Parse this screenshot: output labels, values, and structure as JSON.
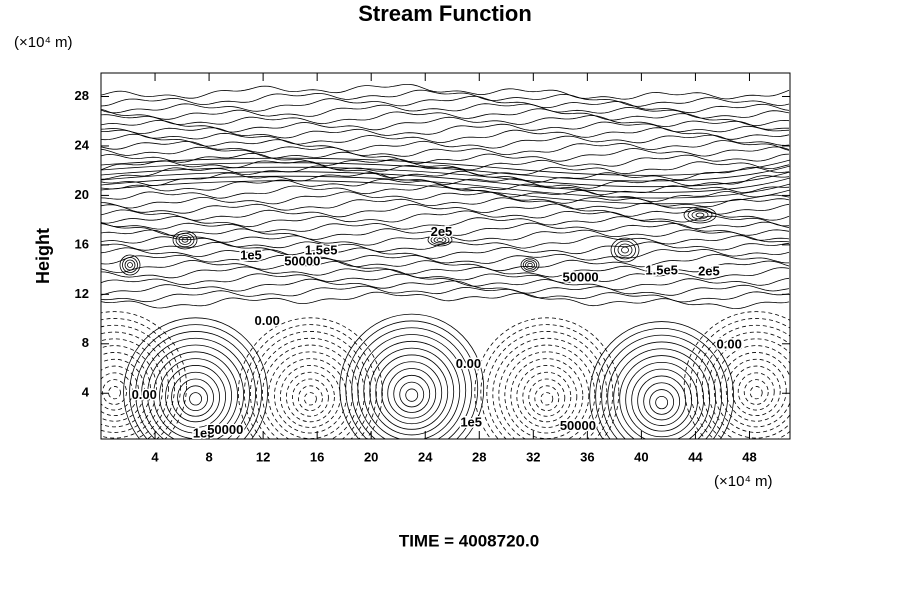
{
  "chart_data": {
    "type": "contour",
    "title": "Stream Function",
    "y_unit": "(×10⁴ m)",
    "x_unit": "(×10⁴ m)",
    "ylabel": "Height",
    "footer": "TIME = 4008720.0",
    "xlim": [
      0,
      51
    ],
    "ylim": [
      0.3,
      29.9
    ],
    "xticks": [
      4,
      8,
      12,
      16,
      20,
      24,
      28,
      32,
      36,
      40,
      44,
      48
    ],
    "yticks": [
      4,
      8,
      12,
      16,
      20,
      24,
      28
    ],
    "cells": [
      {
        "x": 7,
        "y": 3.5,
        "style": "solid"
      },
      {
        "x": 23,
        "y": 3.8,
        "style": "solid"
      },
      {
        "x": 41.5,
        "y": 3.2,
        "style": "solid"
      },
      {
        "x": 1,
        "y": 4,
        "style": "dashed"
      },
      {
        "x": 15.5,
        "y": 3.5,
        "style": "dashed"
      },
      {
        "x": 33,
        "y": 3.5,
        "style": "dashed"
      },
      {
        "x": 48.5,
        "y": 4,
        "style": "dashed"
      }
    ],
    "annotations": [
      {
        "text": "0.00",
        "x": 3.2,
        "y": 3.8
      },
      {
        "text": "1e5",
        "x": 7.6,
        "y": 0.7
      },
      {
        "text": "50000",
        "x": 9.2,
        "y": 1.0
      },
      {
        "text": "0.00",
        "x": 12.3,
        "y": 9.8
      },
      {
        "text": "0.00",
        "x": 27.2,
        "y": 6.3
      },
      {
        "text": "1e5",
        "x": 27.4,
        "y": 1.6
      },
      {
        "text": "50000",
        "x": 35.3,
        "y": 1.3
      },
      {
        "text": "0.00",
        "x": 46.5,
        "y": 7.9
      },
      {
        "text": "1e5",
        "x": 11.1,
        "y": 15.1
      },
      {
        "text": "50000",
        "x": 14.9,
        "y": 14.6
      },
      {
        "text": "1.5e5",
        "x": 16.3,
        "y": 15.5
      },
      {
        "text": "2e5",
        "x": 25.2,
        "y": 17.0
      },
      {
        "text": "50000",
        "x": 35.5,
        "y": 13.3
      },
      {
        "text": "1.5e5",
        "x": 41.5,
        "y": 13.9
      },
      {
        "text": "2e5",
        "x": 45.0,
        "y": 13.8
      }
    ]
  }
}
